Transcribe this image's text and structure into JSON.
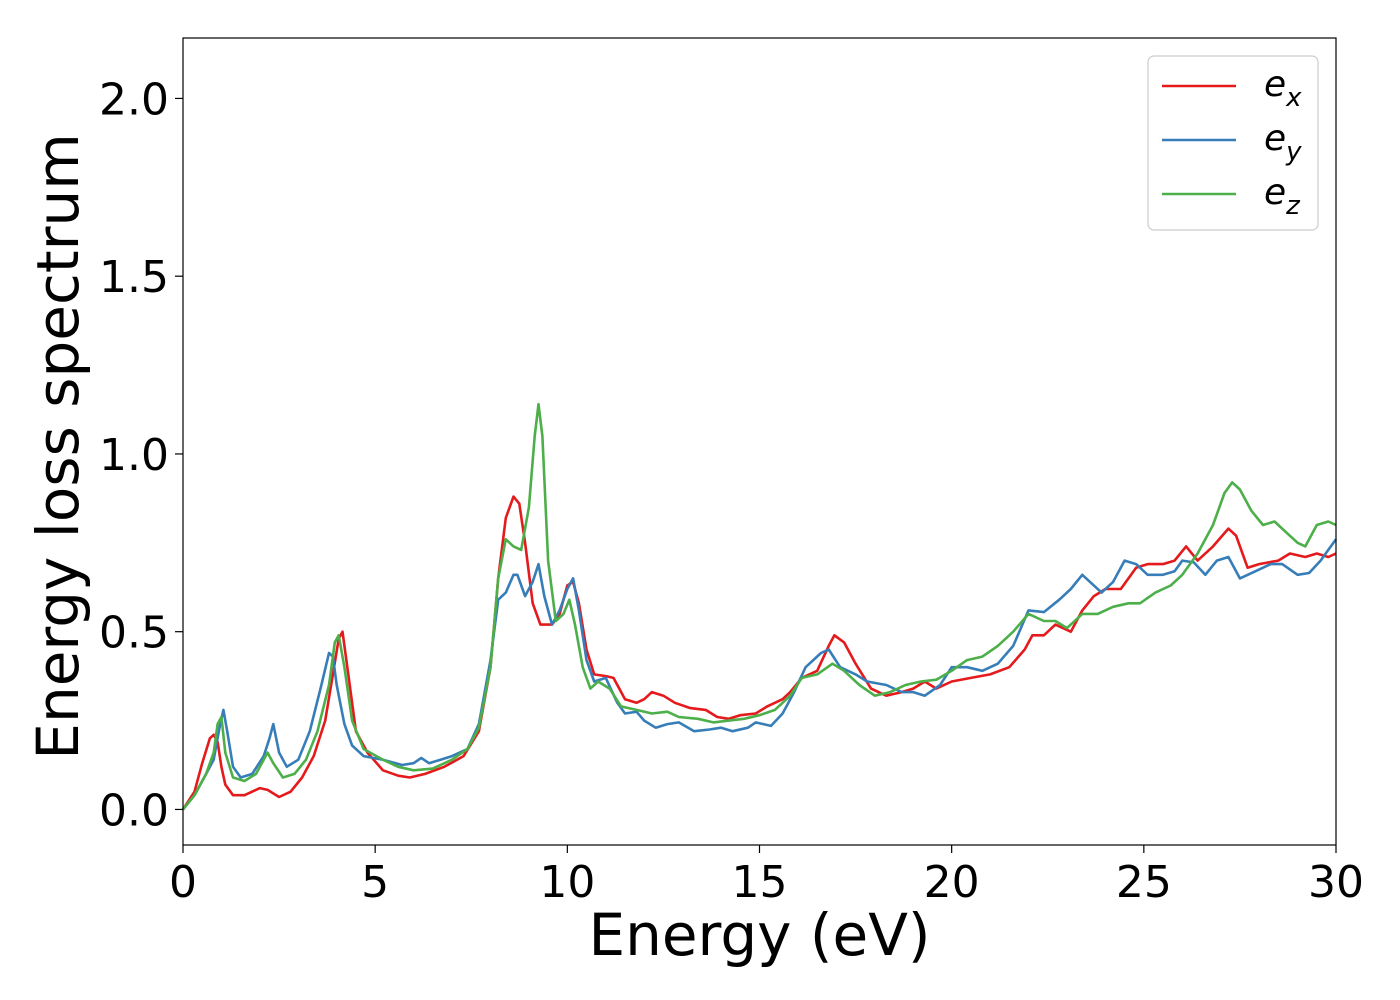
{
  "chart_data": {
    "type": "line",
    "xlabel": "Energy (eV)",
    "ylabel": "Energy loss spectrum",
    "xlim": [
      0,
      30
    ],
    "ylim": [
      -0.1,
      2.17
    ],
    "x_ticks": [
      0,
      5,
      10,
      15,
      20,
      25,
      30
    ],
    "x_tick_labels": [
      "0",
      "5",
      "10",
      "15",
      "20",
      "25",
      "30"
    ],
    "y_ticks": [
      0.0,
      0.5,
      1.0,
      1.5,
      2.0
    ],
    "y_tick_labels": [
      "0.0",
      "0.5",
      "1.0",
      "1.5",
      "2.0"
    ],
    "grid": false,
    "legend_position": "top-right",
    "series": [
      {
        "name": "e_x",
        "label_main": "e",
        "label_sub": "x",
        "color": "#e41a1c",
        "points": [
          [
            0,
            0
          ],
          [
            0.3,
            0.05
          ],
          [
            0.5,
            0.13
          ],
          [
            0.7,
            0.2
          ],
          [
            0.8,
            0.21
          ],
          [
            0.9,
            0.19
          ],
          [
            1.0,
            0.12
          ],
          [
            1.1,
            0.07
          ],
          [
            1.3,
            0.04
          ],
          [
            1.6,
            0.04
          ],
          [
            2.0,
            0.06
          ],
          [
            2.2,
            0.055
          ],
          [
            2.5,
            0.035
          ],
          [
            2.8,
            0.05
          ],
          [
            3.1,
            0.09
          ],
          [
            3.4,
            0.15
          ],
          [
            3.7,
            0.25
          ],
          [
            3.9,
            0.38
          ],
          [
            4.05,
            0.48
          ],
          [
            4.15,
            0.5
          ],
          [
            4.3,
            0.38
          ],
          [
            4.5,
            0.22
          ],
          [
            4.8,
            0.16
          ],
          [
            5.2,
            0.11
          ],
          [
            5.6,
            0.095
          ],
          [
            5.9,
            0.09
          ],
          [
            6.3,
            0.1
          ],
          [
            6.8,
            0.12
          ],
          [
            7.3,
            0.15
          ],
          [
            7.7,
            0.22
          ],
          [
            8.0,
            0.4
          ],
          [
            8.2,
            0.65
          ],
          [
            8.4,
            0.82
          ],
          [
            8.6,
            0.88
          ],
          [
            8.75,
            0.86
          ],
          [
            8.9,
            0.75
          ],
          [
            9.1,
            0.58
          ],
          [
            9.3,
            0.52
          ],
          [
            9.6,
            0.52
          ],
          [
            9.8,
            0.55
          ],
          [
            10.0,
            0.63
          ],
          [
            10.15,
            0.64
          ],
          [
            10.3,
            0.58
          ],
          [
            10.5,
            0.45
          ],
          [
            10.7,
            0.38
          ],
          [
            11.0,
            0.375
          ],
          [
            11.2,
            0.37
          ],
          [
            11.5,
            0.31
          ],
          [
            11.8,
            0.3
          ],
          [
            12.0,
            0.31
          ],
          [
            12.2,
            0.33
          ],
          [
            12.5,
            0.32
          ],
          [
            12.8,
            0.3
          ],
          [
            13.2,
            0.285
          ],
          [
            13.6,
            0.28
          ],
          [
            13.9,
            0.26
          ],
          [
            14.2,
            0.255
          ],
          [
            14.5,
            0.265
          ],
          [
            14.9,
            0.27
          ],
          [
            15.2,
            0.29
          ],
          [
            15.6,
            0.31
          ],
          [
            15.8,
            0.33
          ],
          [
            16.1,
            0.37
          ],
          [
            16.5,
            0.39
          ],
          [
            16.8,
            0.46
          ],
          [
            16.95,
            0.49
          ],
          [
            17.2,
            0.47
          ],
          [
            17.5,
            0.41
          ],
          [
            17.9,
            0.34
          ],
          [
            18.3,
            0.32
          ],
          [
            18.7,
            0.33
          ],
          [
            19.0,
            0.34
          ],
          [
            19.3,
            0.36
          ],
          [
            19.6,
            0.34
          ],
          [
            20.0,
            0.36
          ],
          [
            20.5,
            0.37
          ],
          [
            21.0,
            0.38
          ],
          [
            21.5,
            0.4
          ],
          [
            21.9,
            0.45
          ],
          [
            22.1,
            0.49
          ],
          [
            22.4,
            0.49
          ],
          [
            22.7,
            0.52
          ],
          [
            23.1,
            0.5
          ],
          [
            23.4,
            0.56
          ],
          [
            23.7,
            0.6
          ],
          [
            24.0,
            0.62
          ],
          [
            24.4,
            0.62
          ],
          [
            24.8,
            0.68
          ],
          [
            25.1,
            0.69
          ],
          [
            25.5,
            0.69
          ],
          [
            25.8,
            0.7
          ],
          [
            26.1,
            0.74
          ],
          [
            26.4,
            0.7
          ],
          [
            26.8,
            0.74
          ],
          [
            27.2,
            0.79
          ],
          [
            27.4,
            0.77
          ],
          [
            27.7,
            0.68
          ],
          [
            28.0,
            0.69
          ],
          [
            28.5,
            0.7
          ],
          [
            28.8,
            0.72
          ],
          [
            29.2,
            0.71
          ],
          [
            29.5,
            0.72
          ],
          [
            29.8,
            0.71
          ],
          [
            30,
            0.72
          ]
        ]
      },
      {
        "name": "e_y",
        "label_main": "e",
        "label_sub": "y",
        "color": "#377eb8",
        "points": [
          [
            0,
            0
          ],
          [
            0.3,
            0.04
          ],
          [
            0.6,
            0.1
          ],
          [
            0.8,
            0.14
          ],
          [
            0.95,
            0.23
          ],
          [
            1.05,
            0.28
          ],
          [
            1.15,
            0.22
          ],
          [
            1.3,
            0.12
          ],
          [
            1.5,
            0.09
          ],
          [
            1.8,
            0.1
          ],
          [
            2.1,
            0.15
          ],
          [
            2.25,
            0.2
          ],
          [
            2.35,
            0.24
          ],
          [
            2.5,
            0.16
          ],
          [
            2.7,
            0.12
          ],
          [
            3.0,
            0.14
          ],
          [
            3.3,
            0.22
          ],
          [
            3.6,
            0.35
          ],
          [
            3.8,
            0.44
          ],
          [
            3.9,
            0.43
          ],
          [
            4.0,
            0.35
          ],
          [
            4.2,
            0.24
          ],
          [
            4.4,
            0.18
          ],
          [
            4.7,
            0.15
          ],
          [
            5.2,
            0.14
          ],
          [
            5.7,
            0.125
          ],
          [
            6.0,
            0.13
          ],
          [
            6.2,
            0.145
          ],
          [
            6.4,
            0.13
          ],
          [
            6.7,
            0.14
          ],
          [
            7.0,
            0.15
          ],
          [
            7.4,
            0.17
          ],
          [
            7.7,
            0.24
          ],
          [
            8.0,
            0.42
          ],
          [
            8.2,
            0.59
          ],
          [
            8.4,
            0.61
          ],
          [
            8.6,
            0.66
          ],
          [
            8.7,
            0.66
          ],
          [
            8.9,
            0.6
          ],
          [
            9.1,
            0.64
          ],
          [
            9.25,
            0.69
          ],
          [
            9.4,
            0.6
          ],
          [
            9.6,
            0.52
          ],
          [
            9.8,
            0.56
          ],
          [
            10.0,
            0.62
          ],
          [
            10.15,
            0.65
          ],
          [
            10.3,
            0.56
          ],
          [
            10.5,
            0.42
          ],
          [
            10.7,
            0.36
          ],
          [
            11.0,
            0.37
          ],
          [
            11.3,
            0.3
          ],
          [
            11.5,
            0.27
          ],
          [
            11.8,
            0.275
          ],
          [
            12.0,
            0.25
          ],
          [
            12.3,
            0.23
          ],
          [
            12.6,
            0.24
          ],
          [
            12.9,
            0.245
          ],
          [
            13.3,
            0.22
          ],
          [
            13.7,
            0.225
          ],
          [
            14.0,
            0.23
          ],
          [
            14.3,
            0.22
          ],
          [
            14.7,
            0.23
          ],
          [
            14.9,
            0.245
          ],
          [
            15.3,
            0.235
          ],
          [
            15.6,
            0.27
          ],
          [
            15.9,
            0.33
          ],
          [
            16.2,
            0.4
          ],
          [
            16.6,
            0.44
          ],
          [
            16.8,
            0.45
          ],
          [
            17.1,
            0.4
          ],
          [
            17.5,
            0.38
          ],
          [
            17.8,
            0.36
          ],
          [
            18.3,
            0.35
          ],
          [
            18.7,
            0.33
          ],
          [
            19.0,
            0.33
          ],
          [
            19.3,
            0.32
          ],
          [
            19.7,
            0.35
          ],
          [
            20.0,
            0.4
          ],
          [
            20.4,
            0.4
          ],
          [
            20.8,
            0.39
          ],
          [
            21.2,
            0.41
          ],
          [
            21.6,
            0.46
          ],
          [
            22.0,
            0.56
          ],
          [
            22.4,
            0.555
          ],
          [
            22.8,
            0.59
          ],
          [
            23.1,
            0.62
          ],
          [
            23.4,
            0.66
          ],
          [
            23.6,
            0.64
          ],
          [
            23.9,
            0.61
          ],
          [
            24.2,
            0.64
          ],
          [
            24.5,
            0.7
          ],
          [
            24.8,
            0.69
          ],
          [
            25.1,
            0.66
          ],
          [
            25.5,
            0.66
          ],
          [
            25.8,
            0.67
          ],
          [
            26.0,
            0.7
          ],
          [
            26.3,
            0.695
          ],
          [
            26.6,
            0.66
          ],
          [
            26.9,
            0.7
          ],
          [
            27.2,
            0.71
          ],
          [
            27.5,
            0.65
          ],
          [
            27.9,
            0.67
          ],
          [
            28.3,
            0.69
          ],
          [
            28.6,
            0.69
          ],
          [
            29.0,
            0.66
          ],
          [
            29.3,
            0.665
          ],
          [
            29.6,
            0.7
          ],
          [
            29.8,
            0.73
          ],
          [
            30,
            0.76
          ]
        ]
      },
      {
        "name": "e_z",
        "label_main": "e",
        "label_sub": "z",
        "color": "#4daf4a",
        "points": [
          [
            0,
            0
          ],
          [
            0.3,
            0.04
          ],
          [
            0.6,
            0.1
          ],
          [
            0.8,
            0.16
          ],
          [
            0.9,
            0.24
          ],
          [
            1.0,
            0.26
          ],
          [
            1.1,
            0.16
          ],
          [
            1.3,
            0.09
          ],
          [
            1.6,
            0.08
          ],
          [
            1.9,
            0.1
          ],
          [
            2.1,
            0.14
          ],
          [
            2.2,
            0.16
          ],
          [
            2.35,
            0.13
          ],
          [
            2.6,
            0.09
          ],
          [
            2.9,
            0.1
          ],
          [
            3.2,
            0.14
          ],
          [
            3.5,
            0.22
          ],
          [
            3.8,
            0.35
          ],
          [
            3.95,
            0.47
          ],
          [
            4.05,
            0.49
          ],
          [
            4.2,
            0.4
          ],
          [
            4.4,
            0.25
          ],
          [
            4.7,
            0.17
          ],
          [
            5.2,
            0.14
          ],
          [
            5.6,
            0.12
          ],
          [
            6.0,
            0.11
          ],
          [
            6.5,
            0.115
          ],
          [
            7.0,
            0.14
          ],
          [
            7.4,
            0.17
          ],
          [
            7.7,
            0.23
          ],
          [
            8.0,
            0.4
          ],
          [
            8.2,
            0.65
          ],
          [
            8.4,
            0.76
          ],
          [
            8.6,
            0.74
          ],
          [
            8.8,
            0.73
          ],
          [
            9.0,
            0.85
          ],
          [
            9.15,
            1.05
          ],
          [
            9.25,
            1.14
          ],
          [
            9.35,
            1.05
          ],
          [
            9.5,
            0.7
          ],
          [
            9.7,
            0.53
          ],
          [
            9.9,
            0.55
          ],
          [
            10.05,
            0.59
          ],
          [
            10.2,
            0.52
          ],
          [
            10.4,
            0.4
          ],
          [
            10.6,
            0.34
          ],
          [
            10.8,
            0.36
          ],
          [
            11.1,
            0.34
          ],
          [
            11.4,
            0.29
          ],
          [
            11.8,
            0.28
          ],
          [
            12.2,
            0.27
          ],
          [
            12.6,
            0.275
          ],
          [
            12.9,
            0.26
          ],
          [
            13.4,
            0.255
          ],
          [
            13.8,
            0.245
          ],
          [
            14.2,
            0.25
          ],
          [
            14.6,
            0.255
          ],
          [
            15.0,
            0.265
          ],
          [
            15.4,
            0.28
          ],
          [
            15.8,
            0.32
          ],
          [
            16.1,
            0.37
          ],
          [
            16.5,
            0.38
          ],
          [
            16.9,
            0.41
          ],
          [
            17.2,
            0.39
          ],
          [
            17.6,
            0.35
          ],
          [
            18.0,
            0.32
          ],
          [
            18.4,
            0.33
          ],
          [
            18.8,
            0.35
          ],
          [
            19.2,
            0.36
          ],
          [
            19.6,
            0.365
          ],
          [
            20.0,
            0.39
          ],
          [
            20.4,
            0.42
          ],
          [
            20.8,
            0.43
          ],
          [
            21.2,
            0.46
          ],
          [
            21.6,
            0.5
          ],
          [
            22.0,
            0.55
          ],
          [
            22.4,
            0.53
          ],
          [
            22.7,
            0.53
          ],
          [
            23.0,
            0.51
          ],
          [
            23.4,
            0.55
          ],
          [
            23.8,
            0.55
          ],
          [
            24.2,
            0.57
          ],
          [
            24.6,
            0.58
          ],
          [
            24.9,
            0.58
          ],
          [
            25.3,
            0.61
          ],
          [
            25.7,
            0.63
          ],
          [
            26.0,
            0.66
          ],
          [
            26.4,
            0.72
          ],
          [
            26.8,
            0.8
          ],
          [
            27.1,
            0.89
          ],
          [
            27.3,
            0.92
          ],
          [
            27.5,
            0.9
          ],
          [
            27.8,
            0.84
          ],
          [
            28.1,
            0.8
          ],
          [
            28.4,
            0.81
          ],
          [
            28.7,
            0.78
          ],
          [
            29.0,
            0.75
          ],
          [
            29.2,
            0.74
          ],
          [
            29.5,
            0.8
          ],
          [
            29.8,
            0.81
          ],
          [
            30,
            0.8
          ]
        ]
      }
    ]
  }
}
